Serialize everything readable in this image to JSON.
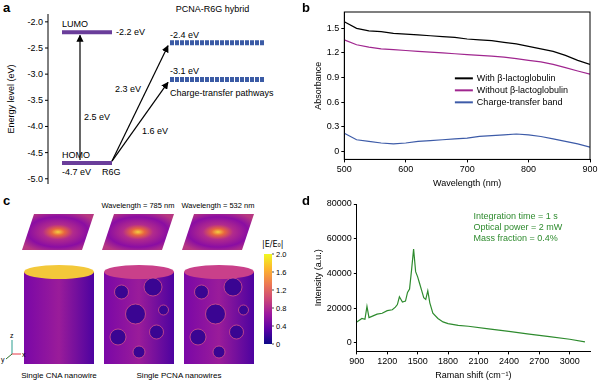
{
  "panel_labels": [
    "a",
    "b",
    "c",
    "d"
  ],
  "diagram": {
    "energy_diagram": {
      "axis_title": "Energy level (eV)",
      "ylim": [
        -1.85,
        -5.1
      ],
      "yticks": [
        {
          "value": -2,
          "label": "-2.0"
        },
        -2.5,
        {
          "value": -3,
          "label": "-3.0"
        },
        -3.5,
        {
          "value": -4,
          "label": "-4.0"
        },
        -4.5,
        {
          "value": -5,
          "label": "-5.0"
        }
      ],
      "r6g": {
        "name": "R6G",
        "levels": [
          {
            "name": "LUMO",
            "value": -2.2,
            "label": "-2.2 eV"
          },
          {
            "name": "HOMO",
            "value": -4.7,
            "label": "-4.7 eV"
          }
        ],
        "gap": "2.5 eV"
      },
      "hybrid": {
        "name": "PCNA-R6G hybrid",
        "levels": [
          {
            "value": -2.4,
            "label": "-2.4 eV"
          },
          {
            "value": -3.1,
            "label": "-3.1 eV"
          }
        ],
        "transitions": [
          "2.3 eV",
          "1.6 eV"
        ],
        "caption": "Charge-transfer pathways"
      }
    },
    "field_maps": {
      "titles": [
        "Wavelength = 785 nm",
        "Wavelength = 532 nm"
      ],
      "captions": [
        "Single CNA nanowire",
        "Single PCNA nanowires"
      ],
      "axis_labels": [
        "x",
        "y",
        "z"
      ],
      "colorbar": {
        "label": "|E/E₀|",
        "range": [
          0,
          2
        ],
        "ticks": [
          0,
          0.4,
          0.8,
          1.2,
          1.6,
          {
            "value": 2,
            "label": "2.0"
          }
        ]
      }
    }
  },
  "chart_data": [
    {
      "type": "line",
      "xlabel": "Wavelength (nm)",
      "ylabel": "Absorbance",
      "x": [
        500,
        520,
        540,
        560,
        580,
        600,
        620,
        640,
        660,
        680,
        700,
        720,
        740,
        760,
        780,
        800,
        820,
        840,
        860,
        880,
        900
      ],
      "series": [
        {
          "name": "With β-lactoglobulin",
          "color": "#000000",
          "values": [
            1.58,
            1.5,
            1.47,
            1.46,
            1.44,
            1.43,
            1.42,
            1.41,
            1.4,
            1.39,
            1.37,
            1.36,
            1.35,
            1.33,
            1.31,
            1.28,
            1.25,
            1.22,
            1.17,
            1.11,
            1.06
          ]
        },
        {
          "name": "Without β-lactoglobulin",
          "color": "#a0268f",
          "values": [
            1.36,
            1.3,
            1.27,
            1.25,
            1.24,
            1.23,
            1.22,
            1.21,
            1.2,
            1.19,
            1.18,
            1.17,
            1.16,
            1.15,
            1.13,
            1.11,
            1.09,
            1.06,
            1.02,
            0.98,
            0.94
          ]
        },
        {
          "name": "Charge-transfer band",
          "color": "#3d5ba8",
          "values": [
            0.22,
            0.14,
            0.12,
            0.1,
            0.09,
            0.1,
            0.12,
            0.13,
            0.14,
            0.15,
            0.16,
            0.18,
            0.19,
            0.2,
            0.21,
            0.2,
            0.18,
            0.15,
            0.12,
            0.09,
            0.05
          ]
        }
      ],
      "xlim": [
        500,
        900
      ],
      "xticks": [
        500,
        600,
        700,
        800,
        900
      ],
      "ylim": [
        -0.1,
        1.7
      ],
      "yticks": [
        0,
        0.3,
        0.6,
        0.9,
        1.2,
        1.5
      ],
      "legend": "right",
      "grid": false
    },
    {
      "type": "line",
      "xlabel": "Raman shift (cm⁻¹)",
      "ylabel": "Intensity (a.u.)",
      "x": [
        900,
        950,
        980,
        1000,
        1020,
        1060,
        1100,
        1150,
        1200,
        1250,
        1280,
        1300,
        1320,
        1350,
        1380,
        1400,
        1420,
        1440,
        1460,
        1480,
        1500,
        1520,
        1540,
        1560,
        1580,
        1600,
        1620,
        1650,
        1700,
        1750,
        1800,
        1900,
        2000,
        2200,
        2400,
        2600,
        2800,
        3000,
        3150
      ],
      "values": [
        12000,
        14000,
        13500,
        21000,
        14500,
        15500,
        16500,
        17000,
        18500,
        19000,
        20500,
        22000,
        26500,
        23500,
        24000,
        29000,
        31000,
        42000,
        54000,
        41000,
        38000,
        34000,
        30000,
        26000,
        25000,
        30000,
        23000,
        17000,
        14000,
        12000,
        11000,
        10000,
        9500,
        8000,
        6500,
        5000,
        3500,
        2000,
        500
      ],
      "color": "#2e8b2e",
      "annotations": [
        "Integration time = 1 s",
        "Optical power = 2 mW",
        "Mass fraction = 0.4%"
      ],
      "xlim": [
        900,
        3200
      ],
      "xticks": [
        900,
        1200,
        1500,
        1800,
        2100,
        2400,
        2700,
        3000
      ],
      "ylim": [
        -5000,
        80000
      ],
      "yticks": [
        0,
        20000,
        40000,
        60000,
        80000
      ],
      "grid": false
    }
  ]
}
